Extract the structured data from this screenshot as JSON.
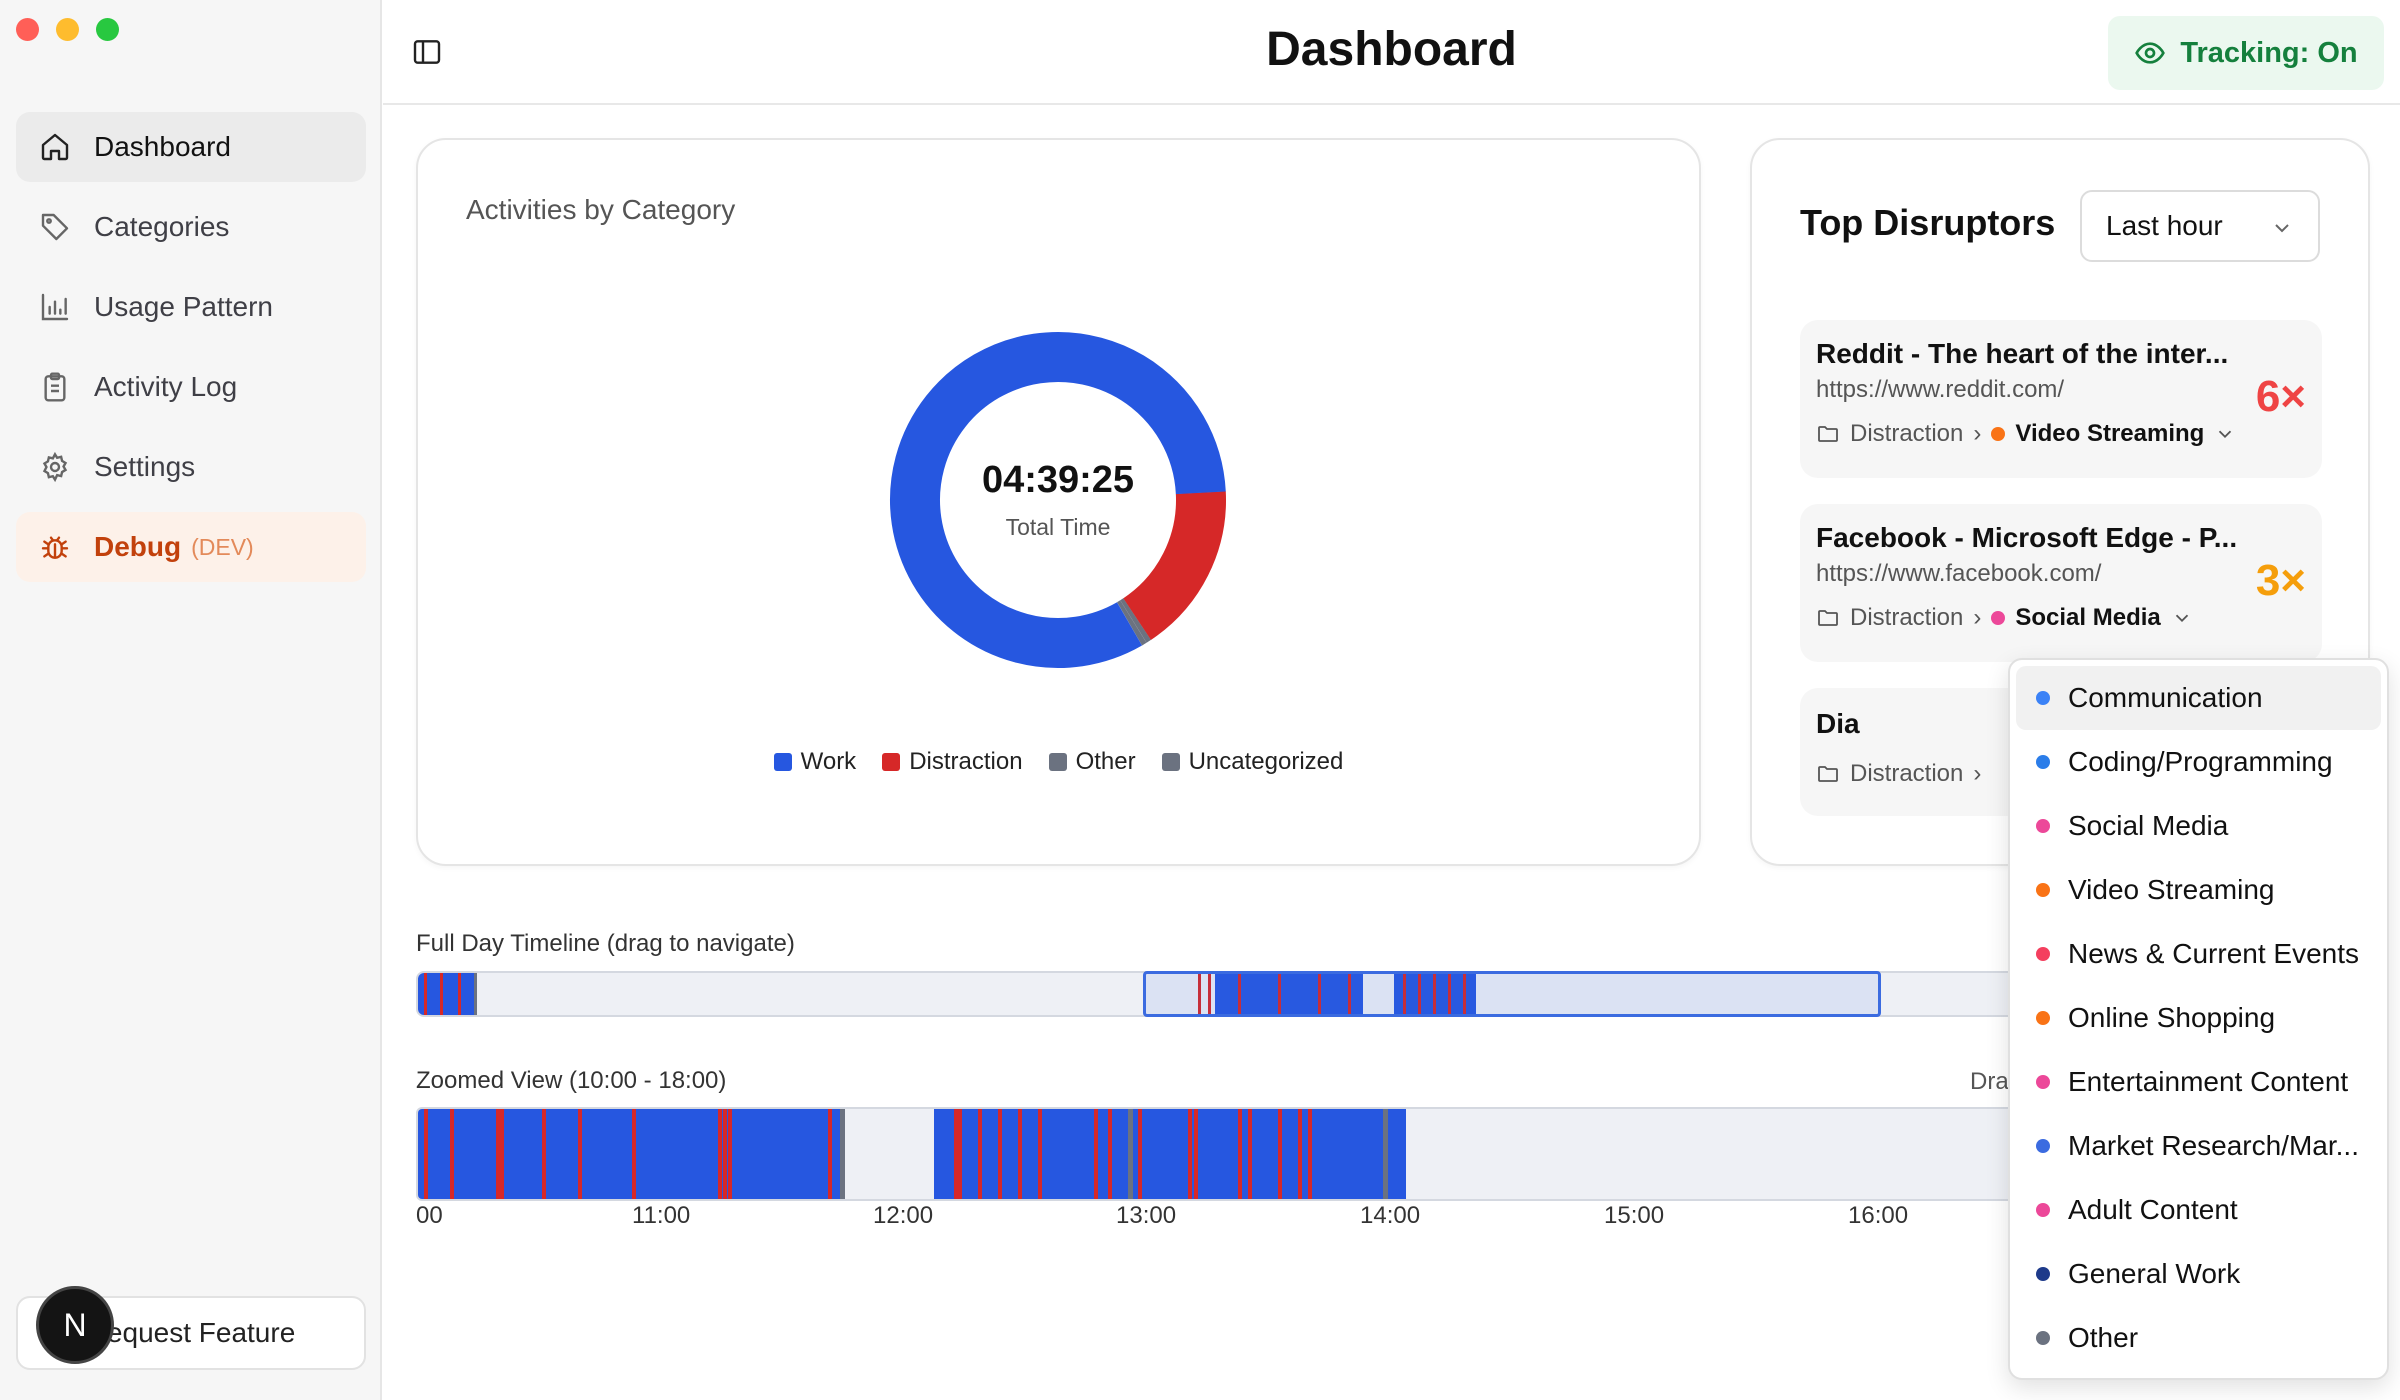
{
  "window": {
    "title": "Dashboard"
  },
  "sidebar": {
    "items": [
      {
        "label": "Dashboard",
        "icon": "home-icon",
        "active": true
      },
      {
        "label": "Categories",
        "icon": "tag-icon"
      },
      {
        "label": "Usage Pattern",
        "icon": "bar-chart-icon"
      },
      {
        "label": "Activity Log",
        "icon": "clipboard-icon"
      },
      {
        "label": "Settings",
        "icon": "gear-icon"
      },
      {
        "label": "Debug",
        "tag": "(DEV)",
        "icon": "bug-icon"
      }
    ],
    "request_feature": "Request Feature",
    "avatar_letter": "N"
  },
  "header": {
    "title": "Dashboard",
    "tracking": "Tracking: On"
  },
  "activity_card": {
    "title": "Activities by Category",
    "total_time": "04:39:25",
    "total_label": "Total Time",
    "legend": [
      {
        "label": "Work",
        "color": "#2657e0"
      },
      {
        "label": "Distraction",
        "color": "#d62828"
      },
      {
        "label": "Other",
        "color": "#6b7280"
      },
      {
        "label": "Uncategorized",
        "color": "#6b7280"
      }
    ]
  },
  "chart_data": {
    "type": "pie",
    "categories": [
      "Work",
      "Distraction",
      "Other",
      "Uncategorized"
    ],
    "values": [
      82.5,
      16.5,
      0.5,
      0.5
    ],
    "center_text": "04:39:25",
    "center_label": "Total Time",
    "legend_placement": "bottom"
  },
  "disruptors": {
    "title": "Top Disruptors",
    "range": "Last hour",
    "items": [
      {
        "title": "Reddit - The heart of the inter...",
        "url": "https://www.reddit.com/",
        "category": "Distraction",
        "subcategory": "Video Streaming",
        "sub_color": "#f97316",
        "count": "6×",
        "count_color": "#ef4444"
      },
      {
        "title": "Facebook - Microsoft Edge - P...",
        "url": "https://www.facebook.com/",
        "category": "Distraction",
        "subcategory": "Social Media",
        "sub_color": "#ec4899",
        "count": "3×",
        "count_color": "#f59e0b"
      },
      {
        "title": "Dia",
        "url": "",
        "category": "Distraction",
        "subcategory": "",
        "count": ""
      }
    ]
  },
  "timeline": {
    "full_label": "Full Day Timeline (drag to navigate)",
    "zoom_label": "Zoomed View (10:00 - 18:00)",
    "drag_hint": "Dra",
    "ticks": [
      "00",
      "11:00",
      "12:00",
      "13:00",
      "14:00",
      "15:00",
      "16:00"
    ]
  },
  "category_dropdown": {
    "options": [
      {
        "label": "Communication",
        "color": "#3b82f6"
      },
      {
        "label": "Coding/Programming",
        "color": "#2b7de9"
      },
      {
        "label": "Social Media",
        "color": "#ec4899"
      },
      {
        "label": "Video Streaming",
        "color": "#f97316"
      },
      {
        "label": "News & Current Events",
        "color": "#f43f5e"
      },
      {
        "label": "Online Shopping",
        "color": "#f97316"
      },
      {
        "label": "Entertainment Content",
        "color": "#ec4899"
      },
      {
        "label": "Market Research/Mar...",
        "color": "#3b6be0"
      },
      {
        "label": "Adult Content",
        "color": "#ec4899"
      },
      {
        "label": "General Work",
        "color": "#1e3a8a"
      },
      {
        "label": "Other",
        "color": "#6b7280"
      }
    ]
  }
}
